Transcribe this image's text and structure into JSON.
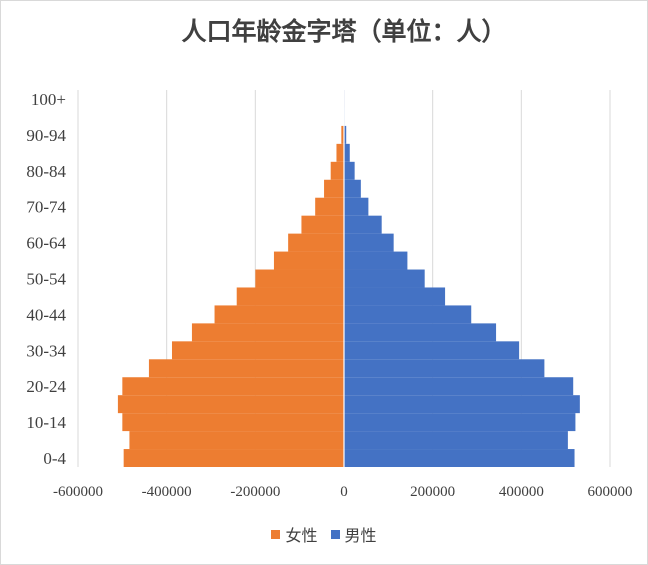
{
  "chart_data": {
    "type": "bar",
    "orientation": "horizontal",
    "layout": "population-pyramid",
    "title": "人口年龄金字塔（单位：人）",
    "categories": [
      "0-4",
      "5-9",
      "10-14",
      "15-19",
      "20-24",
      "25-29",
      "30-34",
      "35-39",
      "40-44",
      "45-49",
      "50-54",
      "55-59",
      "60-64",
      "65-69",
      "70-74",
      "75-79",
      "80-84",
      "85-89",
      "90-94",
      "95-99",
      "100+"
    ],
    "tick_labels": [
      "0-4",
      "10-14",
      "20-24",
      "30-34",
      "40-44",
      "50-54",
      "60-64",
      "70-74",
      "80-84",
      "90-94",
      "100+"
    ],
    "x_ticks": [
      "-600000",
      "-400000",
      "-200000",
      "0",
      "200000",
      "400000",
      "600000"
    ],
    "xlim": [
      -600000,
      600000
    ],
    "grid": true,
    "legend_position": "bottom",
    "series": [
      {
        "name": "女性",
        "color": "#ed7d31",
        "values": [
          -497000,
          -484000,
          -500000,
          -510000,
          -500000,
          -440000,
          -388000,
          -343000,
          -292000,
          -242000,
          -200000,
          -158000,
          -126000,
          -96000,
          -65000,
          -45000,
          -30000,
          -17000,
          -6000,
          -1000,
          -200
        ]
      },
      {
        "name": "男性",
        "color": "#4472c4",
        "values": [
          520000,
          505000,
          522000,
          532000,
          517000,
          452000,
          395000,
          343000,
          287000,
          228000,
          182000,
          143000,
          112000,
          85000,
          55000,
          38000,
          24000,
          13000,
          5000,
          1000,
          200
        ]
      }
    ]
  }
}
